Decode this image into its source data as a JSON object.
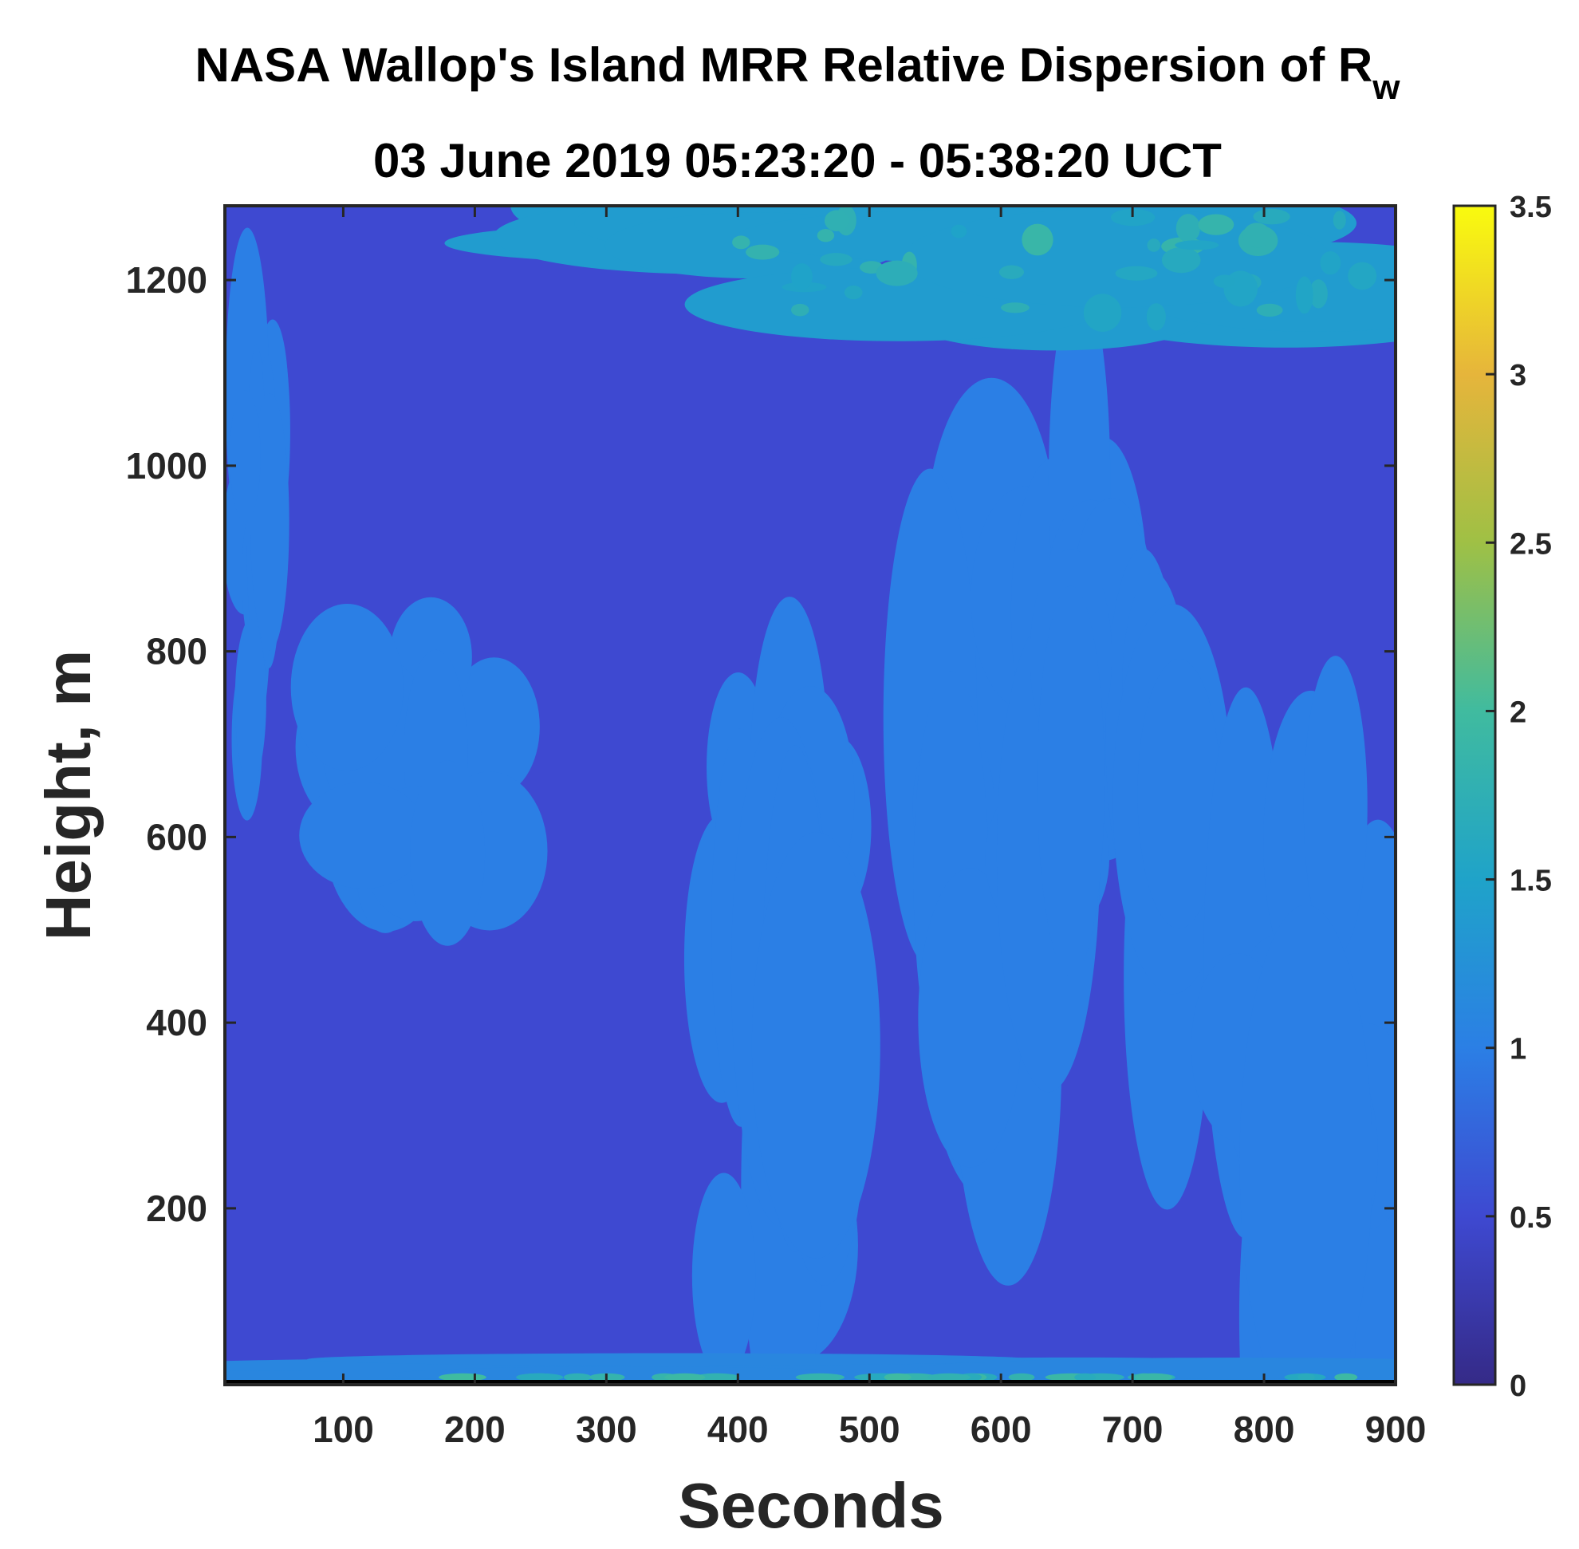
{
  "chart_data": {
    "type": "heatmap",
    "title_main": "NASA Wallop's Island MRR Relative Dispersion of R",
    "title_subscript": "w",
    "subtitle": "03 June 2019 05:23:20 - 05:38:20 UCT",
    "xlabel": "Seconds",
    "ylabel": "Height, m",
    "xlim": [
      10,
      900
    ],
    "ylim": [
      10,
      1280
    ],
    "xticks": [
      100,
      200,
      300,
      400,
      500,
      600,
      700,
      800,
      900
    ],
    "yticks": [
      200,
      400,
      600,
      800,
      1000,
      1200
    ],
    "colorbar": {
      "min": 0,
      "max": 3.5,
      "ticks": [
        "0",
        "0.5",
        "1",
        "1.5",
        "2",
        "2.5",
        "3",
        "3.5"
      ],
      "colormap": "parula",
      "stops": [
        "#352a87",
        "#3e49d1",
        "#2b7fe5",
        "#1fa3c9",
        "#40bb9f",
        "#9fc045",
        "#e6b53b",
        "#f9fb0e"
      ]
    },
    "field_description_values": {
      "dominant_value": 0.5,
      "secondary_value": 1.0,
      "upper_region_value": 1.5,
      "max_observed": 2.0,
      "note_bands": [
        {
          "x": [
            20,
            60
          ],
          "y": [
            700,
            1100
          ],
          "value": 1.0
        },
        {
          "x": [
            100,
            220
          ],
          "y": [
            550,
            800
          ],
          "value": 1.0
        },
        {
          "x": [
            380,
            500
          ],
          "y": [
            50,
            700
          ],
          "value": 1.0
        },
        {
          "x": [
            540,
            660
          ],
          "y": [
            350,
            950
          ],
          "value": 1.0
        },
        {
          "x": [
            620,
            740
          ],
          "y": [
            420,
            1000
          ],
          "value": 1.0
        },
        {
          "x": [
            780,
            900
          ],
          "y": [
            30,
            700
          ],
          "value": 1.0
        },
        {
          "x": [
            350,
            900
          ],
          "y": [
            1150,
            1280
          ],
          "value": 1.4
        },
        {
          "x": [
            10,
            900
          ],
          "y": [
            10,
            40
          ],
          "value": 1.1
        }
      ]
    }
  }
}
